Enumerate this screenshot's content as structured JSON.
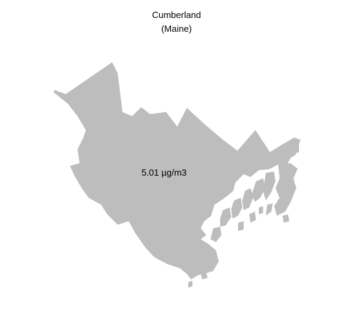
{
  "map": {
    "title": "Cumberland",
    "subtitle": "(Maine)",
    "region_value_label": "5.01 µg/m3",
    "region_value": 5.01,
    "region_unit": "µg/m3",
    "fill_color": "#bdbdbd",
    "background_color": "#ffffff"
  }
}
